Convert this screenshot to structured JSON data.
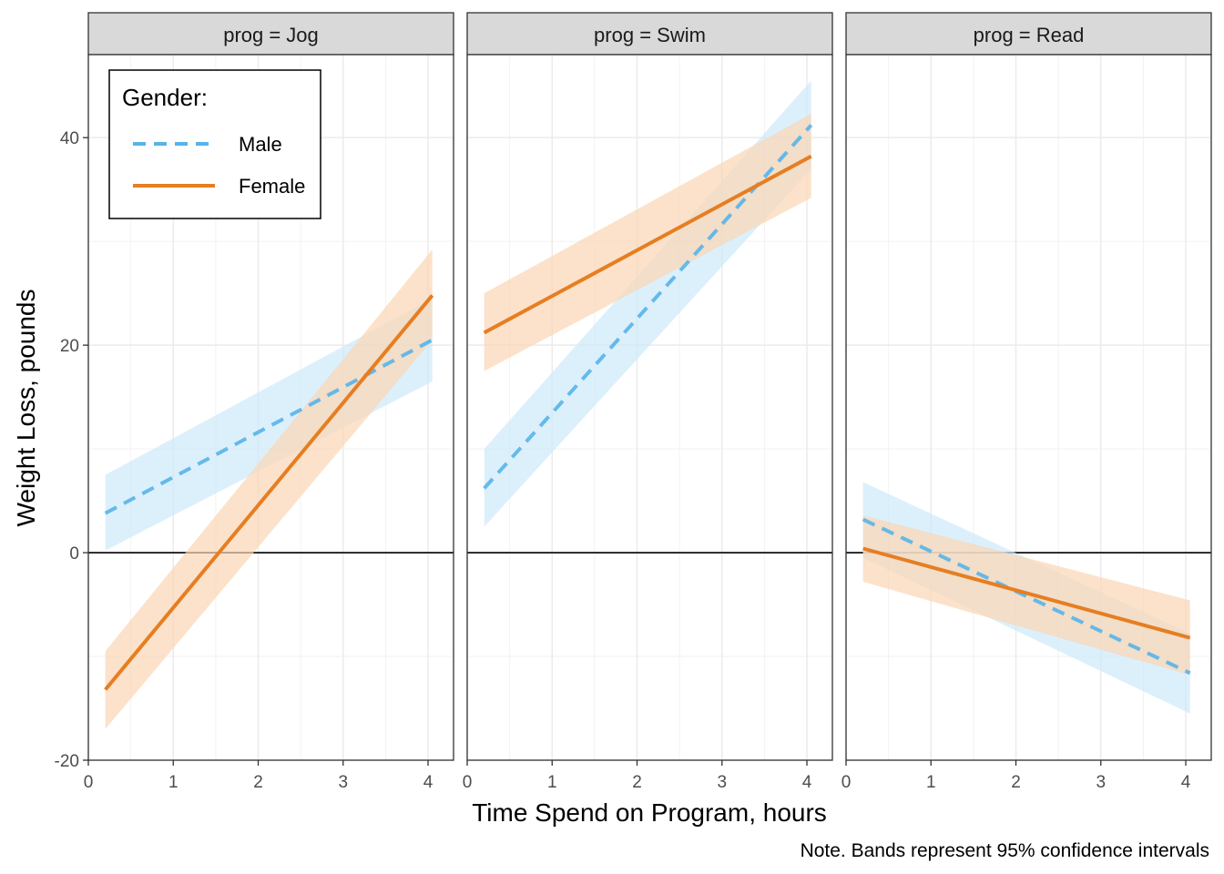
{
  "chart_data": {
    "type": "line",
    "xlabel": "Time Spend on Program, hours",
    "ylabel": "Weight Loss, pounds",
    "note": "Note. Bands represent 95% confidence intervals",
    "xlim": [
      0,
      4.3
    ],
    "ylim": [
      -20,
      48
    ],
    "xticks": [
      0,
      1,
      2,
      3,
      4
    ],
    "yticks": [
      -20,
      0,
      20,
      40
    ],
    "reference_line_y": 0,
    "grid": true,
    "legend": {
      "title": "Gender:",
      "placement": "top-left inside first panel",
      "entries": [
        {
          "label": "Male",
          "color": "#56b4e9",
          "style": "dashed"
        },
        {
          "label": "Female",
          "color": "#e67e22",
          "style": "solid"
        }
      ]
    },
    "panels": [
      {
        "strip": "prog = Jog",
        "series": [
          {
            "name": "Male",
            "x": [
              0.2,
              4.05
            ],
            "y": [
              3.8,
              20.5
            ],
            "lower": [
              0.2,
              16.5
            ],
            "upper": [
              7.5,
              24.5
            ]
          },
          {
            "name": "Female",
            "x": [
              0.2,
              4.05
            ],
            "y": [
              -13.2,
              24.8
            ],
            "lower": [
              -17.0,
              20.5
            ],
            "upper": [
              -9.5,
              29.2
            ]
          }
        ]
      },
      {
        "strip": "prog = Swim",
        "series": [
          {
            "name": "Male",
            "x": [
              0.2,
              4.05
            ],
            "y": [
              6.2,
              41.2
            ],
            "lower": [
              2.5,
              37.0
            ],
            "upper": [
              10.0,
              45.5
            ]
          },
          {
            "name": "Female",
            "x": [
              0.2,
              4.05
            ],
            "y": [
              21.2,
              38.2
            ],
            "lower": [
              17.5,
              34.2
            ],
            "upper": [
              25.0,
              42.3
            ]
          }
        ]
      },
      {
        "strip": "prog = Read",
        "series": [
          {
            "name": "Male",
            "x": [
              0.2,
              4.05
            ],
            "y": [
              3.2,
              -11.6
            ],
            "lower": [
              -0.5,
              -15.5
            ],
            "upper": [
              6.8,
              -7.8
            ]
          },
          {
            "name": "Female",
            "x": [
              0.2,
              4.05
            ],
            "y": [
              0.4,
              -8.2
            ],
            "lower": [
              -2.8,
              -11.8
            ],
            "upper": [
              3.6,
              -4.6
            ]
          }
        ]
      }
    ]
  }
}
